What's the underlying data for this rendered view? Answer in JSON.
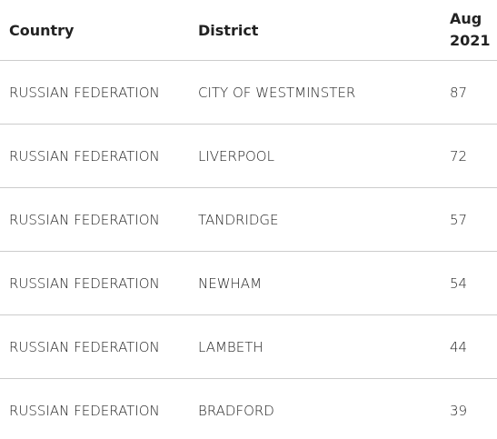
{
  "table": {
    "header": [
      "Country",
      "District",
      "Aug 2021"
    ],
    "rows": [
      [
        "RUSSIAN FEDERATION",
        "CITY OF WESTMINSTER",
        "87"
      ],
      [
        "RUSSIAN FEDERATION",
        "LIVERPOOL",
        "72"
      ],
      [
        "RUSSIAN FEDERATION",
        "TANDRIDGE",
        "57"
      ],
      [
        "RUSSIAN FEDERATION",
        "NEWHAM",
        "54"
      ],
      [
        "RUSSIAN FEDERATION",
        "LAMBETH",
        "44"
      ],
      [
        "RUSSIAN FEDERATION",
        "BRADFORD",
        "39"
      ]
    ]
  }
}
